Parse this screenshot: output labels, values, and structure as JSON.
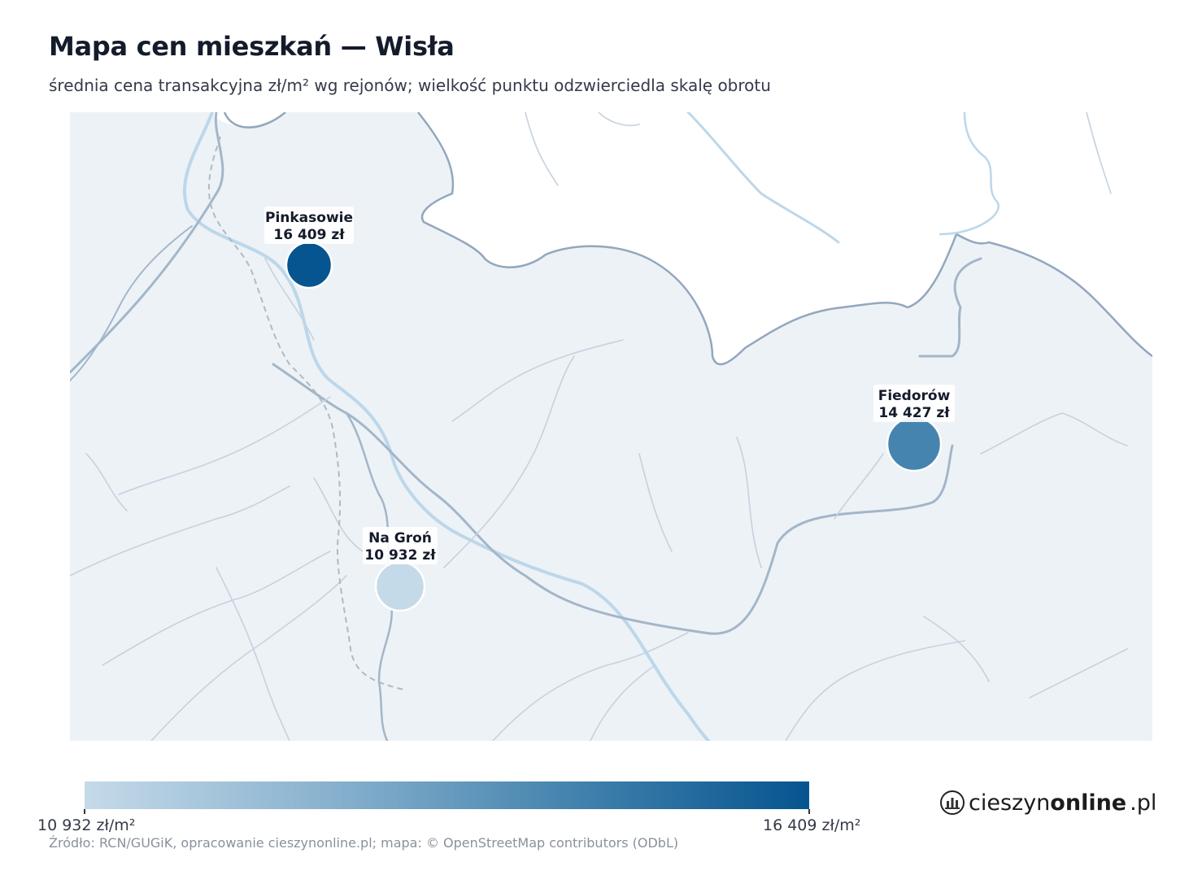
{
  "header": {
    "title": "Mapa cen mieszkań — Wisła",
    "subtitle": "średnia cena transakcyjna zł/m² wg rejonów; wielkość punktu odzwierciedla skalę obrotu"
  },
  "colors": {
    "land": "#edf2f7",
    "road_major": "#93a7bd",
    "road_minor": "#b7c6d6",
    "river": "#bcd7ea",
    "scale_low": "#c5dae9",
    "scale_high": "#065490"
  },
  "markers": [
    {
      "name": "Pinkasowie",
      "price_label": "16 409 zł",
      "price": 16409,
      "color": "#065490"
    },
    {
      "name": "Fiedorów",
      "price_label": "14 427 zł",
      "price": 14427,
      "color": "#4684b0"
    },
    {
      "name": "Na Groń",
      "price_label": "10 932 zł",
      "price": 10932,
      "color": "#c5dae9"
    }
  ],
  "legend": {
    "min_label": "10 932 zł/m²",
    "max_label": "16 409 zł/m²",
    "min": 10932,
    "max": 16409
  },
  "footer": {
    "source": "Źródło: RCN/GUGiK, opracowanie cieszynonline.pl; mapa: © OpenStreetMap contributors (ODbL)",
    "brand_prefix": "cieszyn",
    "brand_bold": "online",
    "brand_suffix": ".pl"
  }
}
